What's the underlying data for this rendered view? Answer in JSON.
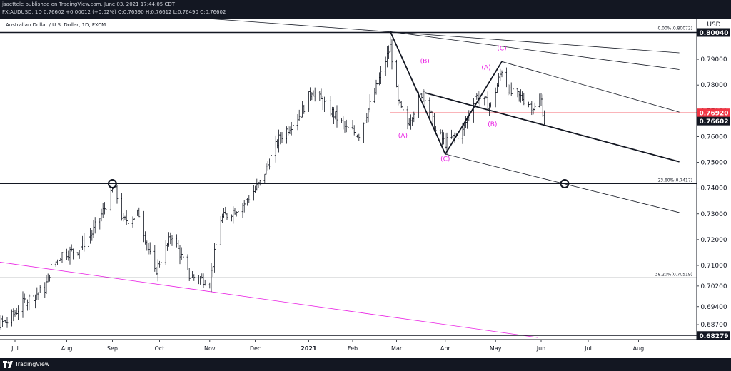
{
  "header": {
    "line1": "jsaettele published on TradingView.com, June 03, 2021 17:44:05 CDT",
    "symbol": "FX:AUDUSD, 1D",
    "last": "0.76602",
    "change": "+0.00012 (+0.02%)",
    "open": "O:0.76590",
    "high": "H:0.76612",
    "low": "L:0.76490",
    "close": "C:0.76602"
  },
  "footer": {
    "brand": "TradingView"
  },
  "colors": {
    "accent": "#e91ee3",
    "red_level": "#f23645",
    "axis_bg": "#ffffff",
    "bars": "#131722",
    "frame": "#131722"
  },
  "chart_data": {
    "type": "bar",
    "title": "Australian Dollar / U.S. Dollar, 1D, FXCM",
    "currency": "USD",
    "ylim": [
      0.6812,
      0.8058
    ],
    "grid": false,
    "x_tick_labels": [
      "Jul",
      "Aug",
      "Sep",
      "Oct",
      "Nov",
      "Dec",
      "2021",
      "Feb",
      "Mar",
      "Apr",
      "May",
      "Jun",
      "Jul",
      "Aug"
    ],
    "x_tick_dates": [
      "2020-07-01",
      "2020-08-03",
      "2020-09-01",
      "2020-10-01",
      "2020-11-02",
      "2020-12-01",
      "2021-01-04",
      "2021-02-01",
      "2021-03-01",
      "2021-04-01",
      "2021-05-03",
      "2021-06-01",
      "2021-07-01",
      "2021-08-02"
    ],
    "y_tick_labels": [
      "0.79000",
      "0.78000",
      "0.77000",
      "0.76000",
      "0.75000",
      "0.74000",
      "0.73000",
      "0.72000",
      "0.71000",
      "0.70200",
      "0.69400",
      "0.68700"
    ],
    "price_labels": [
      {
        "text": "0.80040",
        "price": 0.8004,
        "style": "dark"
      },
      {
        "text": "0.76920",
        "price": 0.7692,
        "style": "red"
      },
      {
        "text": "0.76602",
        "price": 0.76602,
        "style": "dark"
      },
      {
        "text": "0.68279",
        "price": 0.68279,
        "style": "dark"
      }
    ],
    "horizontal_levels": [
      {
        "price": 0.8004
      },
      {
        "price": 0.7417,
        "label": "23.60%(0.7417)"
      },
      {
        "price": 0.70519,
        "label": "38.20%(0.70519)"
      },
      {
        "price": 0.68279
      },
      {
        "price": 0.7692,
        "color": "red"
      }
    ],
    "fib_labels": [
      {
        "label": "0.00%(0.80072)",
        "price": 0.80072
      },
      {
        "label": "23.60%(0.7417)",
        "price": 0.7417
      },
      {
        "label": "38.20%(0.70519)",
        "price": 0.70519
      }
    ],
    "wave_labels": [
      {
        "text": "(A)",
        "date": "2021-03-05",
        "price": 0.7595
      },
      {
        "text": "(B)",
        "date": "2021-03-19",
        "price": 0.7885
      },
      {
        "text": "(C)",
        "date": "2021-04-01",
        "price": 0.7505
      },
      {
        "text": "(A)",
        "date": "2021-04-27",
        "price": 0.786
      },
      {
        "text": "(B)",
        "date": "2021-05-01",
        "price": 0.764
      },
      {
        "text": "(C)",
        "date": "2021-05-07",
        "price": 0.7935
      }
    ],
    "wave_path": [
      {
        "date": "2021-02-25",
        "price": 0.8007
      },
      {
        "date": "2021-04-01",
        "price": 0.7532
      },
      {
        "date": "2021-05-07",
        "price": 0.7891
      }
    ],
    "markers": [
      {
        "date": "2020-09-01",
        "price": 0.7417
      },
      {
        "date": "2021-06-16",
        "price": 0.7417
      }
    ],
    "trendlines": [
      {
        "from": {
          "date": "2020-06-18",
          "price": 0.8118
        },
        "to": {
          "date": "2021-08-28",
          "price": 0.7925
        }
      },
      {
        "from": {
          "date": "2021-02-25",
          "price": 0.8007
        },
        "to": {
          "date": "2021-08-28",
          "price": 0.786
        }
      },
      {
        "from": {
          "date": "2021-05-07",
          "price": 0.7891
        },
        "to": {
          "date": "2021-08-28",
          "price": 0.7695
        }
      },
      {
        "from": {
          "date": "2021-03-19",
          "price": 0.777
        },
        "to": {
          "date": "2021-08-28",
          "price": 0.7502
        },
        "bold": true
      },
      {
        "from": {
          "date": "2021-04-01",
          "price": 0.7532
        },
        "to": {
          "date": "2021-08-28",
          "price": 0.7305
        }
      },
      {
        "from": {
          "date": "2020-06-01",
          "price": 0.713
        },
        "to": {
          "date": "2021-05-30",
          "price": 0.682
        },
        "color": "magenta"
      }
    ],
    "red_ray": {
      "from_date": "2021-02-25",
      "price": 0.7692
    },
    "ohlc_anchors": [
      [
        "2020-06-01",
        0.687
      ],
      [
        "2020-06-12",
        0.687
      ],
      [
        "2020-06-26",
        0.688
      ],
      [
        "2020-07-07",
        0.696
      ],
      [
        "2020-07-20",
        0.701
      ],
      [
        "2020-07-24",
        0.709
      ],
      [
        "2020-07-31",
        0.7145
      ],
      [
        "2020-08-10",
        0.716
      ],
      [
        "2020-08-19",
        0.7225
      ],
      [
        "2020-08-31",
        0.737
      ],
      [
        "2020-09-02",
        0.741
      ],
      [
        "2020-09-08",
        0.727
      ],
      [
        "2020-09-18",
        0.73
      ],
      [
        "2020-09-28",
        0.707
      ],
      [
        "2020-10-09",
        0.722
      ],
      [
        "2020-10-20",
        0.706
      ],
      [
        "2020-11-02",
        0.704
      ],
      [
        "2020-11-09",
        0.728
      ],
      [
        "2020-11-24",
        0.734
      ],
      [
        "2020-12-04",
        0.742
      ],
      [
        "2020-12-16",
        0.759
      ],
      [
        "2020-12-30",
        0.769
      ],
      [
        "2021-01-06",
        0.778
      ],
      [
        "2021-01-18",
        0.77
      ],
      [
        "2021-01-28",
        0.763
      ],
      [
        "2021-02-05",
        0.761
      ],
      [
        "2021-02-15",
        0.777
      ],
      [
        "2021-02-25",
        0.795
      ],
      [
        "2021-03-02",
        0.773
      ],
      [
        "2021-03-08",
        0.765
      ],
      [
        "2021-03-18",
        0.778
      ],
      [
        "2021-03-26",
        0.762
      ],
      [
        "2021-04-01",
        0.7575
      ],
      [
        "2021-04-12",
        0.762
      ],
      [
        "2021-04-20",
        0.776
      ],
      [
        "2021-04-30",
        0.772
      ],
      [
        "2021-05-07",
        0.786
      ],
      [
        "2021-05-12",
        0.777
      ],
      [
        "2021-05-20",
        0.775
      ],
      [
        "2021-05-28",
        0.771
      ],
      [
        "2021-06-01",
        0.774
      ],
      [
        "2021-06-03",
        0.766
      ]
    ]
  }
}
